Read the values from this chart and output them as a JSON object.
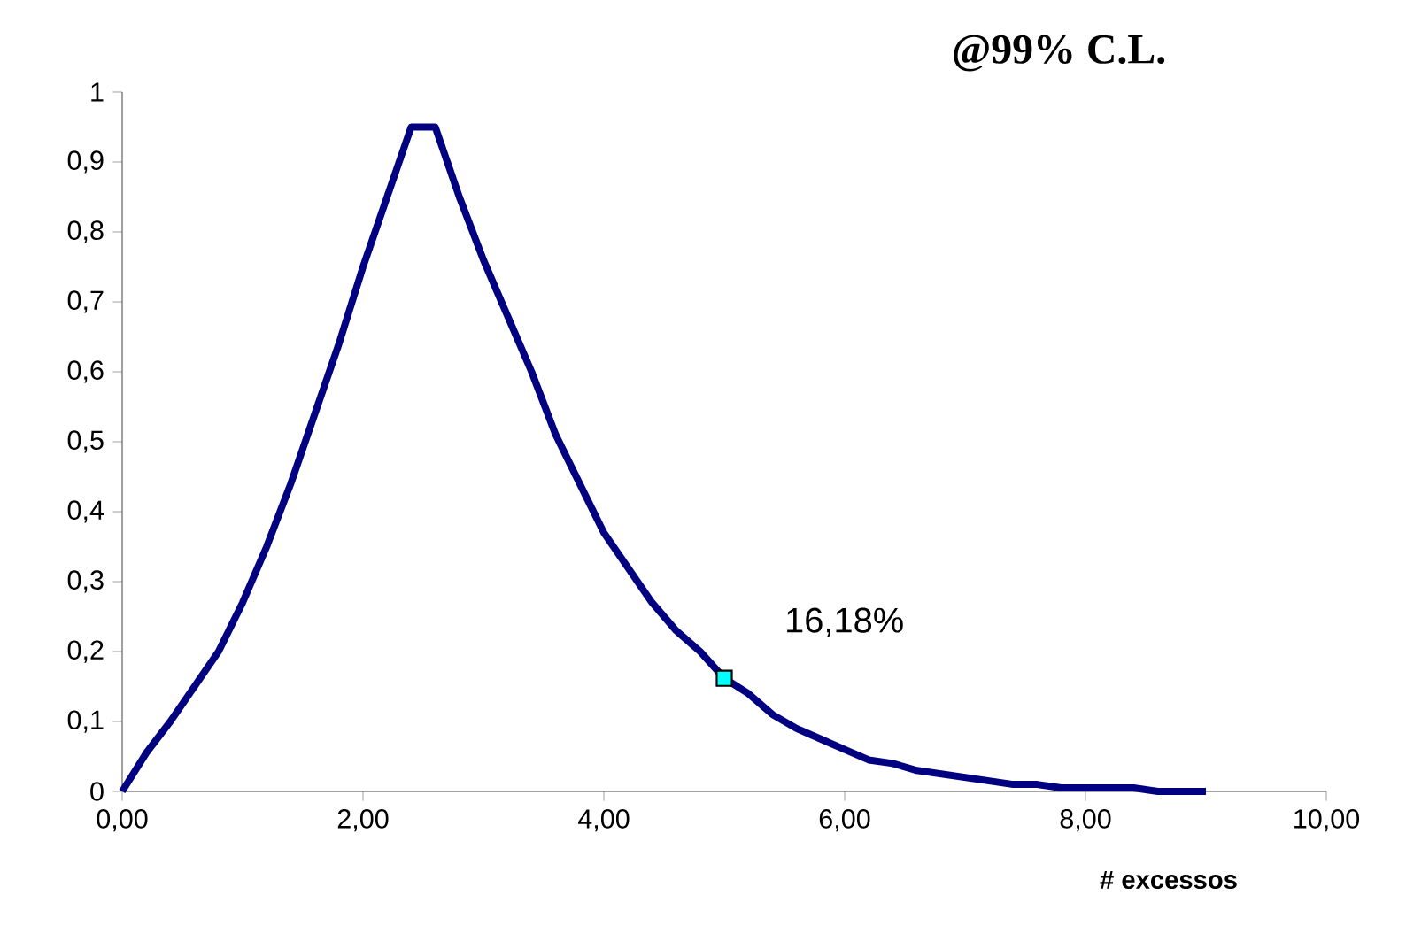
{
  "chart_data": {
    "type": "line",
    "title": "@99% C.L.",
    "xlabel": "# excessos",
    "xlim": [
      0,
      10
    ],
    "ylim": [
      0,
      1
    ],
    "xticks": [
      {
        "value": 0,
        "label": "0,00"
      },
      {
        "value": 2,
        "label": "2,00"
      },
      {
        "value": 4,
        "label": "4,00"
      },
      {
        "value": 6,
        "label": "6,00"
      },
      {
        "value": 8,
        "label": "8,00"
      },
      {
        "value": 10,
        "label": "10,00"
      }
    ],
    "yticks": [
      0,
      {
        "value": 0.1,
        "label": "0,1"
      },
      {
        "value": 0.2,
        "label": "0,2"
      },
      {
        "value": 0.3,
        "label": "0,3"
      },
      {
        "value": 0.4,
        "label": "0,4"
      },
      {
        "value": 0.5,
        "label": "0,5"
      },
      {
        "value": 0.6,
        "label": "0,6"
      },
      {
        "value": 0.7,
        "label": "0,7"
      },
      {
        "value": 0.8,
        "label": "0,8"
      },
      {
        "value": 0.9,
        "label": "0,9"
      },
      1
    ],
    "grid": false,
    "series": [
      {
        "color": "#000080",
        "marker": "none",
        "x": [
          0,
          0.2,
          0.4,
          0.6,
          0.8,
          1.0,
          1.2,
          1.4,
          1.6,
          1.8,
          2.0,
          2.2,
          2.4,
          2.6,
          2.8,
          3.0,
          3.2,
          3.4,
          3.6,
          3.8,
          4.0,
          4.2,
          4.4,
          4.6,
          4.8,
          5.0,
          5.2,
          5.4,
          5.6,
          5.8,
          6.0,
          6.2,
          6.4,
          6.6,
          6.8,
          7.0,
          7.2,
          7.4,
          7.6,
          7.8,
          8.0,
          8.2,
          8.4,
          8.6,
          8.8,
          9.0
        ],
        "values": [
          0,
          0.055,
          0.1,
          0.15,
          0.2,
          0.27,
          0.35,
          0.44,
          0.54,
          0.64,
          0.75,
          0.85,
          0.95,
          0.95,
          0.85,
          0.76,
          0.68,
          0.6,
          0.51,
          0.44,
          0.37,
          0.32,
          0.27,
          0.23,
          0.2,
          0.1618,
          0.14,
          0.11,
          0.09,
          0.075,
          0.06,
          0.045,
          0.04,
          0.03,
          0.025,
          0.02,
          0.015,
          0.01,
          0.01,
          0.005,
          0.005,
          0.005,
          0.005,
          0,
          0,
          0
        ]
      },
      {
        "type": "scatter",
        "color": "#00ffff",
        "marker": "square",
        "x": [
          5
        ],
        "values": [
          0.1618
        ]
      }
    ],
    "annotations": [
      {
        "text": "16,18%",
        "x": 5,
        "y": 0.1618
      }
    ]
  }
}
